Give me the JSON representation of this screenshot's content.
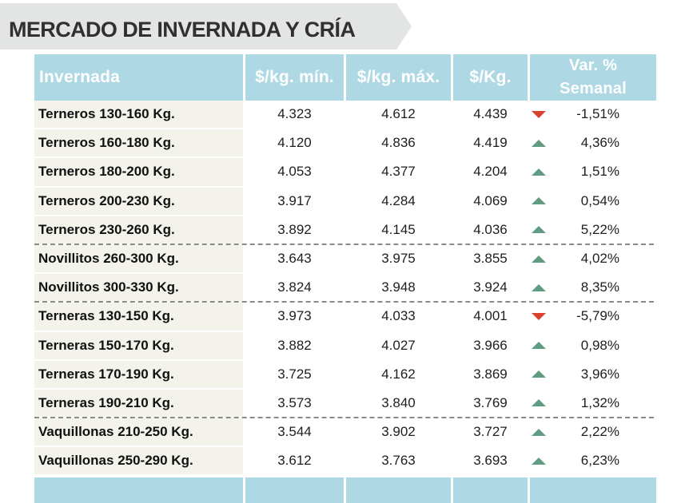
{
  "title": "MERCADO DE INVERNADA Y CRÍA",
  "colors": {
    "header_bg": "#aed9e4",
    "banner_bg": "#e3e4e4",
    "first_col_bg": "#f3f3ec",
    "up_arrow": "#5f9c82",
    "down_arrow": "#d9432e"
  },
  "table": {
    "headers": {
      "category": "Invernada",
      "min": "$/kg. mín.",
      "max": "$/kg. máx.",
      "avg": "$/Kg.",
      "var_line1": "Var. %",
      "var_line2": "Semanal"
    },
    "rows": [
      {
        "category": "Terneros 130-160 Kg.",
        "min": "4.323",
        "max": "4.612",
        "avg": "4.439",
        "trend": "down",
        "var": "-1,51%"
      },
      {
        "category": "Terneros 160-180 Kg.",
        "min": "4.120",
        "max": "4.836",
        "avg": "4.419",
        "trend": "up",
        "var": "4,36%"
      },
      {
        "category": "Terneros 180-200 Kg.",
        "min": "4.053",
        "max": "4.377",
        "avg": "4.204",
        "trend": "up",
        "var": "1,51%"
      },
      {
        "category": "Terneros 200-230 Kg.",
        "min": "3.917",
        "max": "4.284",
        "avg": "4.069",
        "trend": "up",
        "var": "0,54%"
      },
      {
        "category": "Terneros 230-260 Kg.",
        "min": "3.892",
        "max": "4.145",
        "avg": "4.036",
        "trend": "up",
        "var": "5,22%"
      },
      {
        "category": "Novillitos 260-300 Kg.",
        "min": "3.643",
        "max": "3.975",
        "avg": "3.855",
        "trend": "up",
        "var": "4,02%"
      },
      {
        "category": "Novillitos 300-330 Kg.",
        "min": "3.824",
        "max": "3.948",
        "avg": "3.924",
        "trend": "up",
        "var": "8,35%"
      },
      {
        "category": "Terneras 130-150 Kg.",
        "min": "3.973",
        "max": "4.033",
        "avg": "4.001",
        "trend": "down",
        "var": "-5,79%"
      },
      {
        "category": "Terneras 150-170 Kg.",
        "min": "3.882",
        "max": "4.027",
        "avg": "3.966",
        "trend": "up",
        "var": "0,98%"
      },
      {
        "category": "Terneras 170-190 Kg.",
        "min": "3.725",
        "max": "4.162",
        "avg": "3.869",
        "trend": "up",
        "var": "3,96%"
      },
      {
        "category": "Terneras 190-210 Kg.",
        "min": "3.573",
        "max": "3.840",
        "avg": "3.769",
        "trend": "up",
        "var": "1,32%"
      },
      {
        "category": "Vaquillonas 210-250 Kg.",
        "min": "3.544",
        "max": "3.902",
        "avg": "3.727",
        "trend": "up",
        "var": "2,22%"
      },
      {
        "category": "Vaquillonas 250-290 Kg.",
        "min": "3.612",
        "max": "3.763",
        "avg": "3.693",
        "trend": "up",
        "var": "6,23%"
      }
    ]
  }
}
